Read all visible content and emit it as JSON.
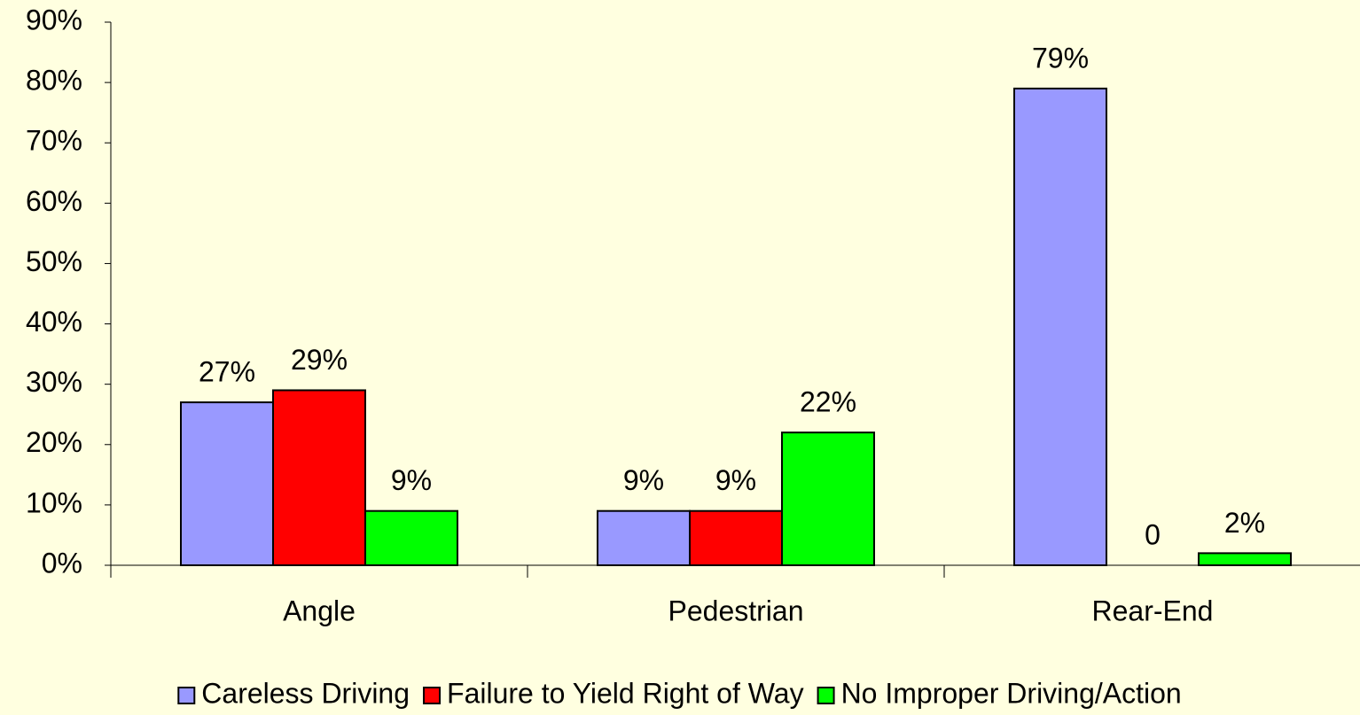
{
  "chart_data": {
    "type": "bar",
    "categories": [
      "Angle",
      "Pedestrian",
      "Rear-End"
    ],
    "series": [
      {
        "name": "Careless Driving",
        "color": "#9999ff",
        "values": [
          27,
          9,
          79
        ],
        "value_labels": [
          "27%",
          "9%",
          "79%"
        ]
      },
      {
        "name": "Failure to Yield Right of Way",
        "color": "#ff0000",
        "values": [
          29,
          9,
          0
        ],
        "value_labels": [
          "29%",
          "9%",
          "0"
        ]
      },
      {
        "name": "No Improper Driving/Action",
        "color": "#00ff00",
        "values": [
          9,
          22,
          2
        ],
        "value_labels": [
          "9%",
          "22%",
          "2%"
        ]
      }
    ],
    "ylim": [
      0,
      90
    ],
    "yticks": [
      {
        "value": 0,
        "label": "0%"
      },
      {
        "value": 10,
        "label": "10%"
      },
      {
        "value": 20,
        "label": "20%"
      },
      {
        "value": 30,
        "label": "30%"
      },
      {
        "value": 40,
        "label": "40%"
      },
      {
        "value": 50,
        "label": "50%"
      },
      {
        "value": 60,
        "label": "60%"
      },
      {
        "value": 70,
        "label": "70%"
      },
      {
        "value": 80,
        "label": "80%"
      },
      {
        "value": 90,
        "label": "90%"
      }
    ],
    "grid": false,
    "legend": "bottom"
  }
}
